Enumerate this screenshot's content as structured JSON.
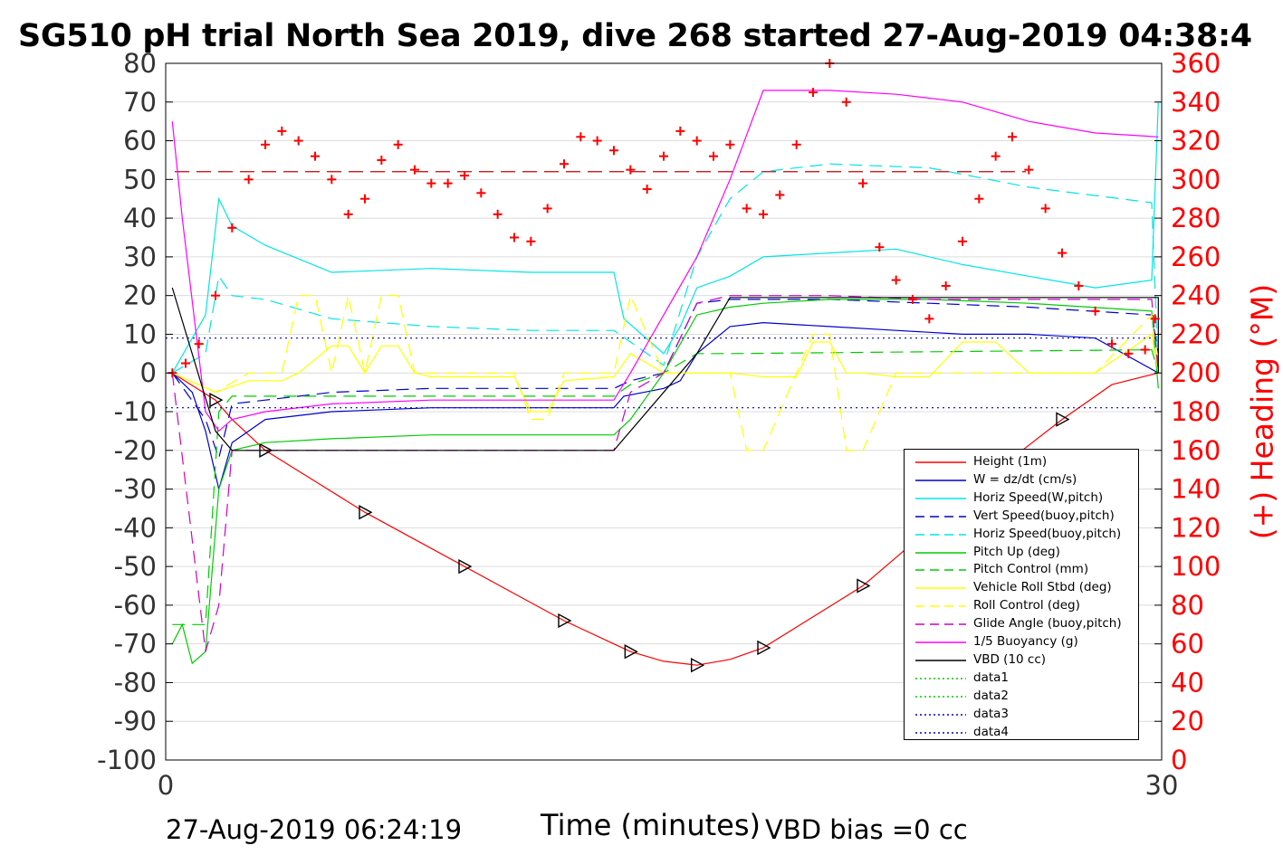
{
  "title": "SG510 pH trial North Sea 2019, dive 268 started 27-Aug-2019 04:38:4",
  "footer": {
    "timestamp": "27-Aug-2019 06:24:19",
    "vbd_bias": "VBD bias =0 cc"
  },
  "chart_data": {
    "type": "line",
    "title": "SG510 pH trial North Sea 2019, dive 268 started 27-Aug-2019 04:38:4",
    "xlabel": "Time (minutes)",
    "ylabel": "",
    "y2label": "(+) Heading (°M)",
    "xlim": [
      0,
      30
    ],
    "ylim": [
      -100,
      80
    ],
    "y2lim": [
      0,
      360
    ],
    "x_ticks": [
      "0",
      "30"
    ],
    "y_ticks": [
      "80",
      "70",
      "60",
      "50",
      "40",
      "30",
      "20",
      "10",
      "0",
      "-10",
      "-20",
      "-30",
      "-40",
      "-50",
      "-60",
      "-70",
      "-80",
      "-90",
      "-100"
    ],
    "y2_ticks": [
      "360",
      "340",
      "320",
      "300",
      "280",
      "260",
      "240",
      "220",
      "200",
      "180",
      "160",
      "140",
      "120",
      "100",
      "80",
      "60",
      "40",
      "20",
      "0"
    ],
    "grid": true,
    "legend_position": "bottom-right",
    "series": [
      {
        "name": "Height (1m)",
        "color": "#ff0000",
        "style": "solid",
        "x": [
          0.2,
          1.5,
          2.0,
          3.0,
          4.5,
          6.0,
          7.5,
          9.0,
          10.5,
          12.0,
          13.5,
          14.0,
          15.0,
          16.0,
          17.0,
          18.0,
          19.5,
          21.0,
          22.5,
          24.0,
          25.5,
          27.0,
          28.5,
          30.0
        ],
        "y": [
          0,
          -7,
          -12,
          -20,
          -28,
          -36,
          -43,
          -50,
          -57,
          -64,
          -70,
          -72,
          -74.5,
          -75.5,
          -74,
          -71,
          -63,
          -55,
          -44,
          -33,
          -22,
          -12,
          -3,
          0
        ]
      },
      {
        "name": "W = dz/dt (cm/s)",
        "color": "#0000cc",
        "style": "solid",
        "x": [
          0.2,
          0.8,
          1.2,
          1.6,
          2.0,
          3.0,
          5.0,
          8.0,
          11.0,
          13.5,
          13.8,
          15.0,
          15.5,
          16.0,
          17.0,
          18.0,
          20.0,
          22.0,
          24.0,
          26.0,
          28.0,
          30.0
        ],
        "y": [
          0,
          -5,
          -15,
          -30,
          -18,
          -12,
          -10,
          -9,
          -9,
          -9,
          -6,
          -4,
          -2,
          5,
          12,
          13,
          12,
          11,
          10,
          10,
          9,
          0
        ]
      },
      {
        "name": "Horiz Speed(W,pitch)",
        "color": "#00e5e5",
        "style": "solid",
        "x": [
          0.2,
          1.2,
          1.6,
          2.0,
          3.0,
          5.0,
          8.0,
          11.0,
          13.5,
          13.8,
          15.0,
          15.5,
          16.0,
          17.0,
          18.0,
          20.0,
          22.0,
          24.0,
          26.0,
          28.0,
          29.7,
          30.0
        ],
        "y": [
          0,
          15,
          45,
          38,
          33,
          26,
          27,
          26,
          26,
          14,
          5,
          12,
          22,
          25,
          30,
          31,
          32,
          28,
          25,
          22,
          24,
          70
        ]
      },
      {
        "name": "Vert Speed(buoy,pitch)",
        "color": "#0000cc",
        "style": "dash",
        "x": [
          0.2,
          1.2,
          1.6,
          2.0,
          3.0,
          5.0,
          8.0,
          11.0,
          13.5,
          14.0,
          15.0,
          16.0,
          17.0,
          20.0,
          23.0,
          26.0,
          29.7,
          30.0
        ],
        "y": [
          0,
          -12,
          -22,
          -8,
          -7,
          -5,
          -4,
          -4,
          -4,
          -2,
          0,
          18,
          19,
          19,
          18,
          17,
          15,
          5
        ]
      },
      {
        "name": "Horiz Speed(buoy,pitch)",
        "color": "#00e5e5",
        "style": "dash",
        "x": [
          0.2,
          1.2,
          1.6,
          2.0,
          3.0,
          5.0,
          8.0,
          11.0,
          13.5,
          14.0,
          15.0,
          16.0,
          17.0,
          18.0,
          20.0,
          23.0,
          26.0,
          29.7,
          30.0
        ],
        "y": [
          0,
          5,
          25,
          20,
          19,
          14,
          12,
          11,
          11,
          8,
          2,
          30,
          45,
          52,
          54,
          53,
          48,
          44,
          0
        ]
      },
      {
        "name": "Pitch Up (deg)",
        "color": "#00cc00",
        "style": "solid",
        "x": [
          0.2,
          0.5,
          0.8,
          1.2,
          1.6,
          2.0,
          3.0,
          5.0,
          8.0,
          11.0,
          13.5,
          14.0,
          15.0,
          16.0,
          17.0,
          18.0,
          20.0,
          23.0,
          26.0,
          29.7,
          30.0
        ],
        "y": [
          -70,
          -65,
          -75,
          -72,
          -30,
          -20,
          -18,
          -17,
          -16,
          -16,
          -16,
          -12,
          0,
          15,
          17,
          18,
          19,
          19,
          18,
          16,
          -4
        ]
      },
      {
        "name": "Pitch Control (mm)",
        "color": "#00cc00",
        "style": "dash",
        "x": [
          0.2,
          1.2,
          1.6,
          2.0,
          3.0,
          8.0,
          13.5,
          14.0,
          15.0,
          16.0,
          17.0,
          29.7,
          30.0
        ],
        "y": [
          -65,
          -65,
          -10,
          -6,
          -6,
          -6,
          -6,
          -3,
          0,
          5,
          5,
          6,
          0
        ]
      },
      {
        "name": "Vehicle Roll Stbd (deg)",
        "color": "#ffff00",
        "style": "solid",
        "x": [
          0.2,
          1.5,
          2.5,
          3.5,
          4.0,
          5.0,
          5.5,
          6.0,
          6.5,
          7.0,
          7.5,
          8.0,
          10.5,
          11.0,
          11.5,
          12.0,
          13.5,
          14.0,
          15.0,
          16.0,
          17.0,
          18.0,
          19.0,
          19.5,
          20.0,
          20.5,
          21.0,
          22.0,
          23.0,
          24.0,
          25.0,
          26.0,
          28.0,
          29.7,
          30.0
        ],
        "y": [
          0,
          -5,
          -2,
          -2,
          0,
          7,
          7,
          0,
          7,
          7,
          0,
          -1,
          -1,
          -10,
          -10,
          -2,
          -1,
          5,
          0,
          0,
          0,
          -1,
          -1,
          8,
          8,
          0,
          0,
          -1,
          -1,
          8,
          8,
          0,
          0,
          10,
          0
        ]
      },
      {
        "name": "Roll Control (deg)",
        "color": "#ffff00",
        "style": "dash",
        "x": [
          0.2,
          1.5,
          2.5,
          3.5,
          4.0,
          4.5,
          5.0,
          5.5,
          6.0,
          6.5,
          7.0,
          7.5,
          8.0,
          10.5,
          11.0,
          11.5,
          12.0,
          13.5,
          14.0,
          15.0,
          16.0,
          17.0,
          17.5,
          18.0,
          19.0,
          19.5,
          20.0,
          20.5,
          21.0,
          22.0,
          23.0,
          26.0,
          28.0,
          29.7,
          30.0
        ],
        "y": [
          0,
          -5,
          0,
          0,
          20,
          20,
          0,
          20,
          0,
          20,
          20,
          0,
          0,
          0,
          -12,
          -12,
          0,
          0,
          20,
          0,
          0,
          0,
          -20,
          -20,
          0,
          10,
          10,
          -20,
          -20,
          0,
          0,
          0,
          0,
          15,
          0
        ]
      },
      {
        "name": "Glide Angle (buoy,pitch)",
        "color": "#cc00cc",
        "style": "dash",
        "x": [
          0.2,
          1.2,
          1.6,
          2.0,
          3.0,
          5.0,
          8.0,
          11.0,
          13.5,
          14.0,
          15.0,
          16.0,
          17.0,
          20.0,
          23.0,
          26.0,
          29.7,
          30.0
        ],
        "y": [
          0,
          -72,
          -60,
          -20,
          -20,
          -20,
          -20,
          -20,
          -20,
          -5,
          0,
          18,
          20,
          20,
          19,
          19,
          19,
          0
        ]
      },
      {
        "name": "1/5 Buoyancy (g)",
        "color": "#ff00ff",
        "style": "solid",
        "x": [
          0.2,
          0.5,
          1.2,
          1.6,
          2.0,
          3.0,
          5.0,
          8.0,
          11.0,
          13.5,
          14.0,
          15.0,
          16.0,
          17.0,
          18.0,
          20.0,
          22.0,
          24.0,
          26.0,
          28.0,
          30.0
        ],
        "y": [
          65,
          40,
          -10,
          -15,
          -12,
          -10,
          -8,
          -7,
          -7,
          -7,
          0,
          15,
          30,
          50,
          73,
          73,
          72,
          70,
          65,
          62,
          61
        ]
      },
      {
        "name": "VBD (10 cc)",
        "color": "#000000",
        "style": "solid",
        "x": [
          0.2,
          1.5,
          2.0,
          3.0,
          8.0,
          13.5,
          15.5,
          16.0,
          17.0,
          29.9,
          30.0
        ],
        "y": [
          22,
          -15,
          -20,
          -20,
          -20,
          -20,
          0,
          5,
          19.5,
          19.5,
          0
        ]
      },
      {
        "name": "data1",
        "color": "#00cc00",
        "style": "dot",
        "x": [],
        "y": []
      },
      {
        "name": "data2",
        "color": "#00cc00",
        "style": "dot",
        "x": [],
        "y": []
      },
      {
        "name": "data3",
        "color": "#0000cc",
        "style": "dot",
        "x": [
          0,
          30
        ],
        "y": [
          9,
          9
        ]
      },
      {
        "name": "data4",
        "color": "#0000cc",
        "style": "dot",
        "x": [
          0,
          30
        ],
        "y": [
          -9,
          -9
        ]
      }
    ],
    "reference_lines": [
      {
        "color": "#cc0000",
        "style": "dash",
        "y": 52,
        "x": [
          0,
          30
        ]
      }
    ],
    "heading_series": {
      "name": "(+) Heading (°M)",
      "color": "#ff0000",
      "marker": "+",
      "x": [
        0.2,
        0.6,
        1.0,
        1.5,
        2.0,
        2.5,
        3.0,
        3.5,
        4.0,
        4.5,
        5.0,
        5.5,
        6.0,
        6.5,
        7.0,
        7.5,
        8.0,
        8.5,
        9.0,
        9.5,
        10.0,
        10.5,
        11.0,
        11.5,
        12.0,
        12.5,
        13.0,
        13.5,
        14.0,
        14.5,
        15.0,
        15.5,
        16.0,
        16.5,
        17.0,
        17.5,
        18.0,
        18.5,
        19.0,
        19.5,
        20.0,
        20.5,
        21.0,
        21.5,
        22.0,
        22.5,
        23.0,
        23.5,
        24.0,
        24.5,
        25.0,
        25.5,
        26.0,
        26.5,
        27.0,
        27.5,
        28.0,
        28.5,
        29.0,
        29.5,
        30.0
      ],
      "y": [
        200,
        205,
        215,
        240,
        275,
        300,
        318,
        325,
        320,
        312,
        300,
        282,
        290,
        310,
        318,
        305,
        298,
        298,
        302,
        293,
        282,
        270,
        268,
        285,
        308,
        322,
        320,
        315,
        305,
        295,
        312,
        325,
        320,
        312,
        318,
        285,
        282,
        292,
        318,
        345,
        360,
        340,
        298,
        265,
        248,
        238,
        228,
        245,
        268,
        290,
        312,
        322,
        305,
        285,
        262,
        245,
        232,
        215,
        210,
        212,
        228
      ]
    }
  }
}
